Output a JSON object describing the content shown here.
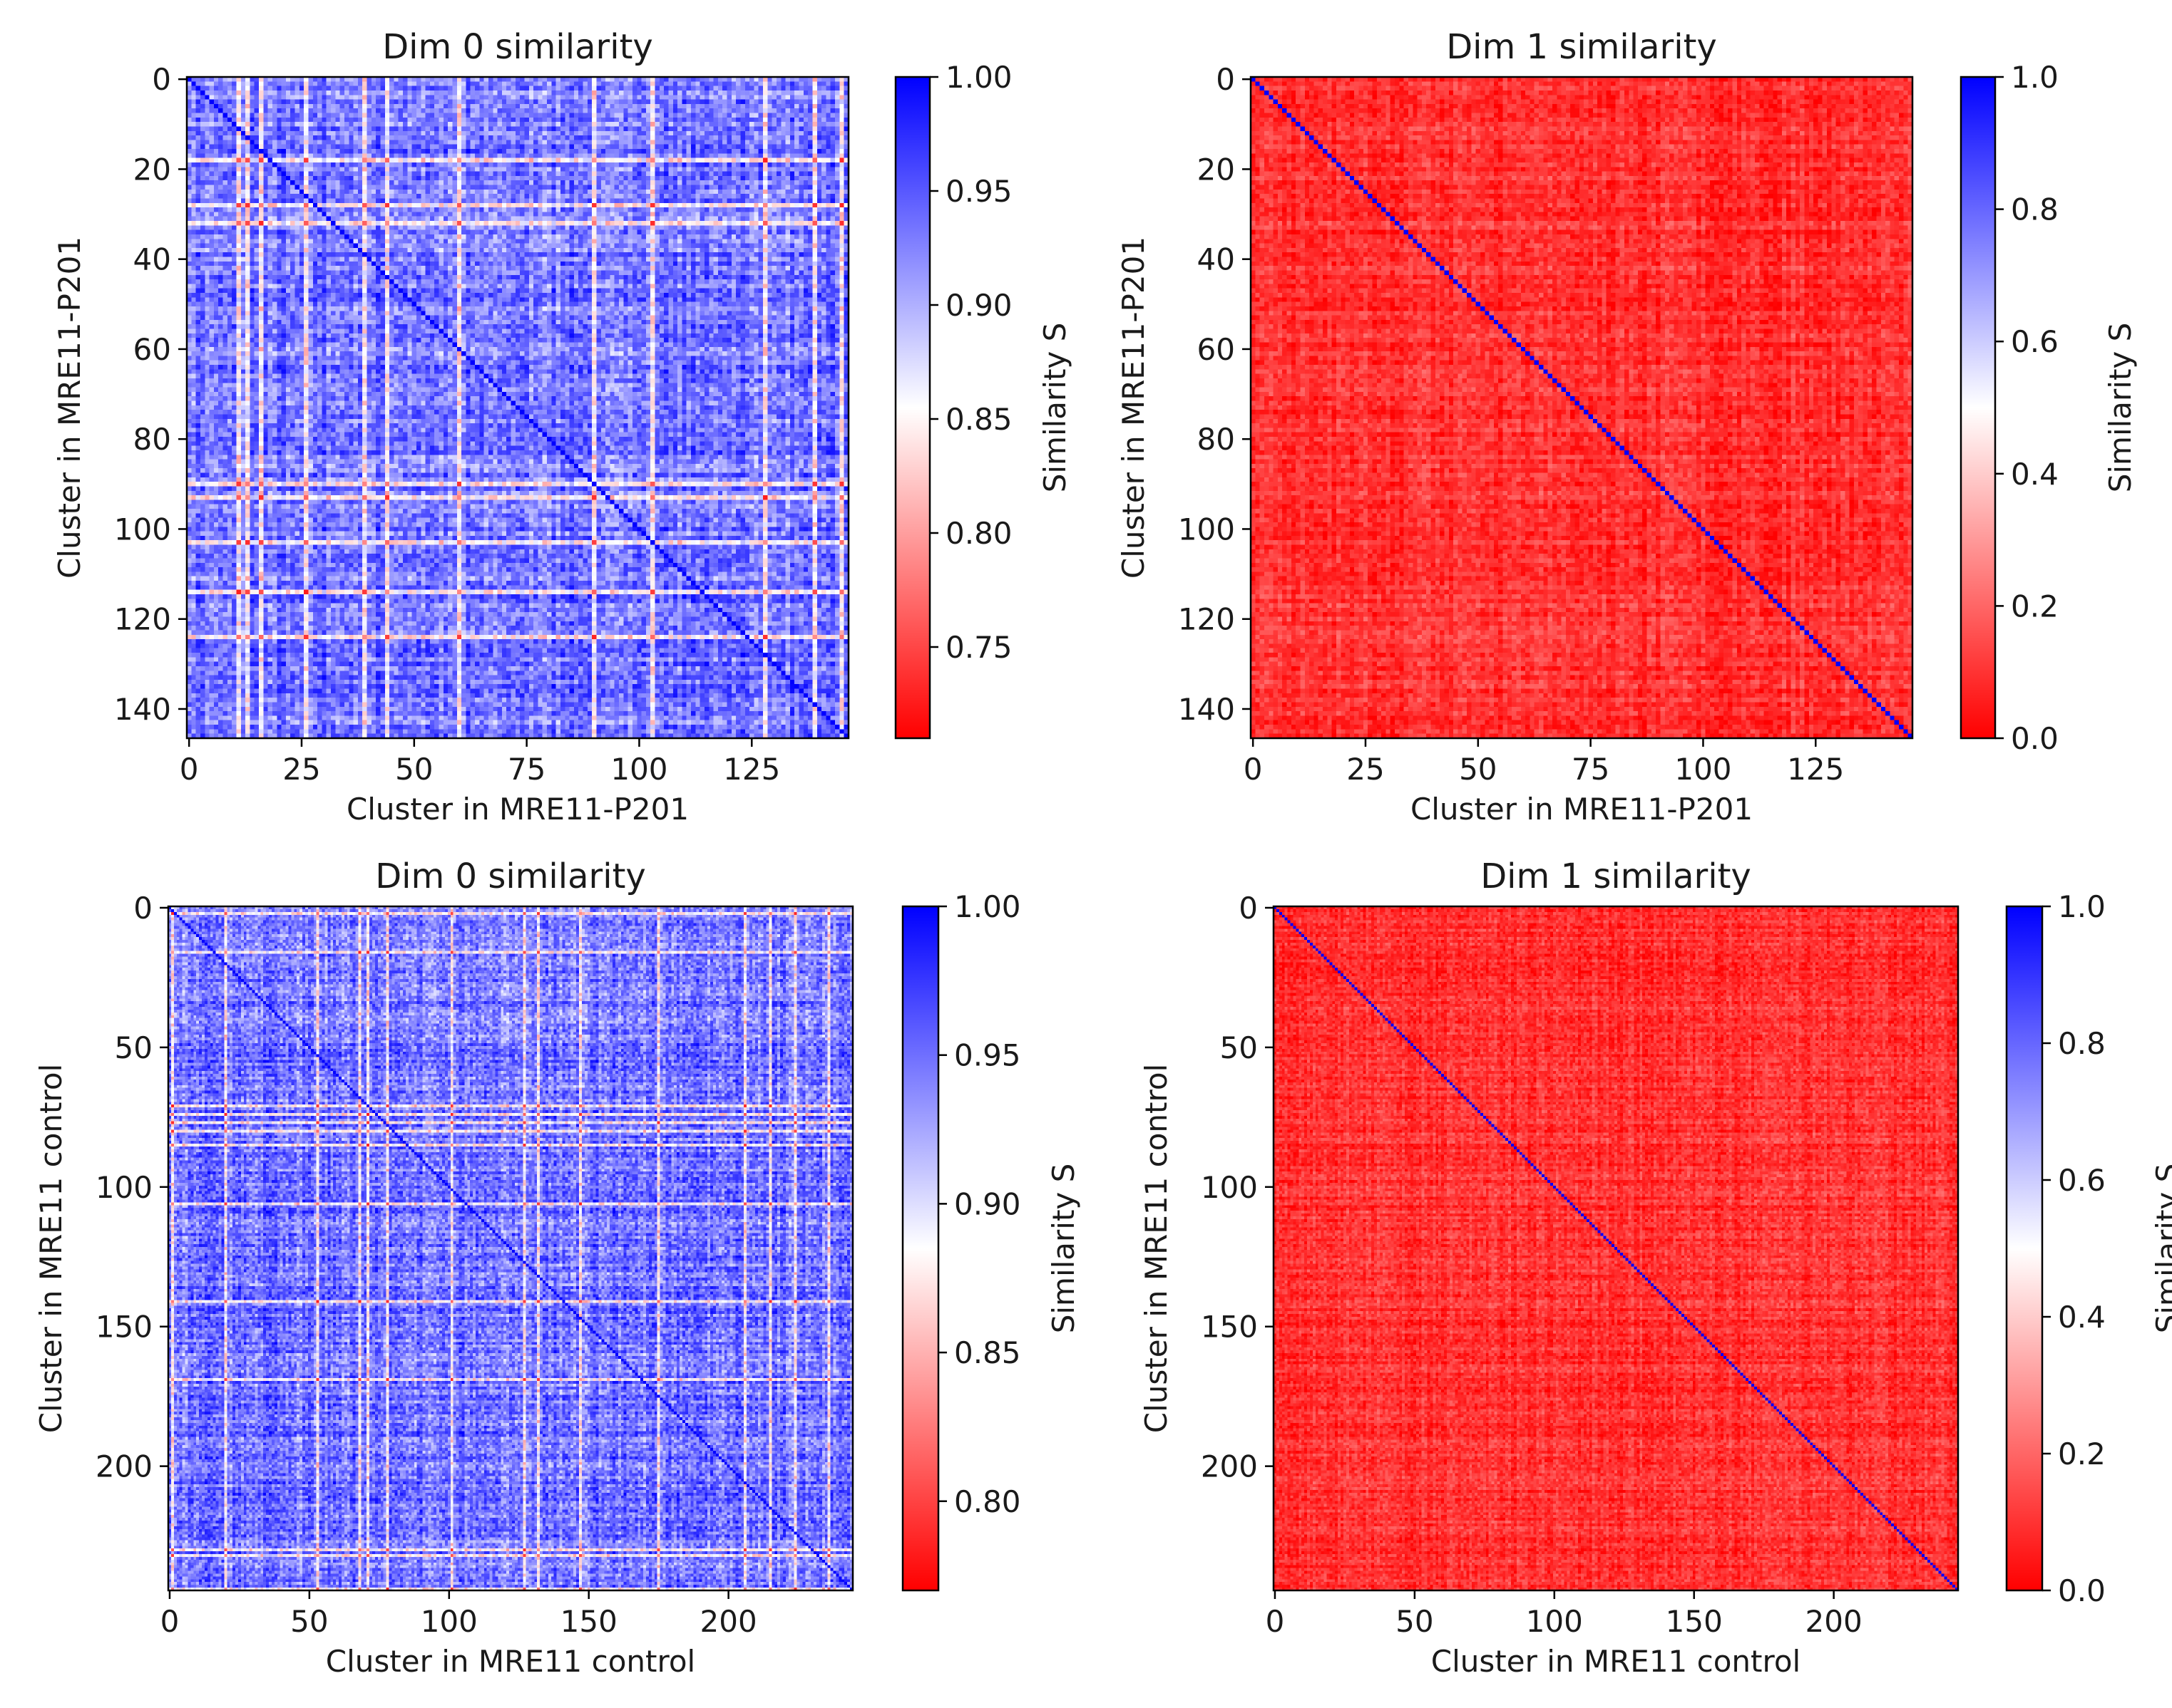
{
  "colors": {
    "low": "#ff0000",
    "mid": "#ffffff",
    "high": "#0000ff"
  },
  "chart_data": [
    {
      "type": "heatmap",
      "title": "Dim 0 similarity",
      "xlabel": "Cluster in MRE11-P201",
      "ylabel": "Cluster in MRE11-P201",
      "n": 147,
      "xticks": [
        0,
        25,
        50,
        75,
        100,
        125
      ],
      "yticks": [
        0,
        20,
        40,
        60,
        80,
        100,
        120,
        140
      ],
      "diagonal_value": 1.0,
      "typical_offdiag": 0.93,
      "colorbar": {
        "label": "Similarity S",
        "vmin": 0.71,
        "vmax": 1.0,
        "ticks": [
          "1.00",
          "0.95",
          "0.90",
          "0.85",
          "0.80",
          "0.75"
        ],
        "tick_values": [
          1.0,
          0.95,
          0.9,
          0.85,
          0.8,
          0.75
        ],
        "cmap": "bwr_r"
      },
      "seed": 11
    },
    {
      "type": "heatmap",
      "title": "Dim 1 similarity",
      "xlabel": "Cluster in MRE11-P201",
      "ylabel": "Cluster in MRE11-P201",
      "n": 147,
      "xticks": [
        0,
        25,
        50,
        75,
        100,
        125
      ],
      "yticks": [
        0,
        20,
        40,
        60,
        80,
        100,
        120,
        140
      ],
      "diagonal_value": 1.0,
      "typical_offdiag": 0.1,
      "colorbar": {
        "label": "Similarity S",
        "vmin": 0.0,
        "vmax": 1.0,
        "ticks": [
          "1.0",
          "0.8",
          "0.6",
          "0.4",
          "0.2",
          "0.0"
        ],
        "tick_values": [
          1.0,
          0.8,
          0.6,
          0.4,
          0.2,
          0.0
        ],
        "cmap": "bwr_r"
      },
      "seed": 23
    },
    {
      "type": "heatmap",
      "title": "Dim 0 similarity",
      "xlabel": "Cluster in MRE11 control",
      "ylabel": "Cluster in MRE11 control",
      "n": 245,
      "xticks": [
        0,
        50,
        100,
        150,
        200
      ],
      "yticks": [
        0,
        50,
        100,
        150,
        200
      ],
      "diagonal_value": 1.0,
      "typical_offdiag": 0.945,
      "colorbar": {
        "label": "Similarity S",
        "vmin": 0.77,
        "vmax": 1.0,
        "ticks": [
          "1.00",
          "0.95",
          "0.90",
          "0.85",
          "0.80"
        ],
        "tick_values": [
          1.0,
          0.95,
          0.9,
          0.85,
          0.8
        ],
        "cmap": "bwr_r"
      },
      "seed": 37
    },
    {
      "type": "heatmap",
      "title": "Dim 1 similarity",
      "xlabel": "Cluster in MRE11 control",
      "ylabel": "Cluster in MRE11 control",
      "n": 245,
      "xticks": [
        0,
        50,
        100,
        150,
        200
      ],
      "yticks": [
        0,
        50,
        100,
        150,
        200
      ],
      "diagonal_value": 1.0,
      "typical_offdiag": 0.1,
      "colorbar": {
        "label": "Similarity S",
        "vmin": 0.0,
        "vmax": 1.0,
        "ticks": [
          "1.0",
          "0.8",
          "0.6",
          "0.4",
          "0.2",
          "0.0"
        ],
        "tick_values": [
          1.0,
          0.8,
          0.6,
          0.4,
          0.2,
          0.0
        ],
        "cmap": "bwr_r"
      },
      "seed": 53
    }
  ]
}
